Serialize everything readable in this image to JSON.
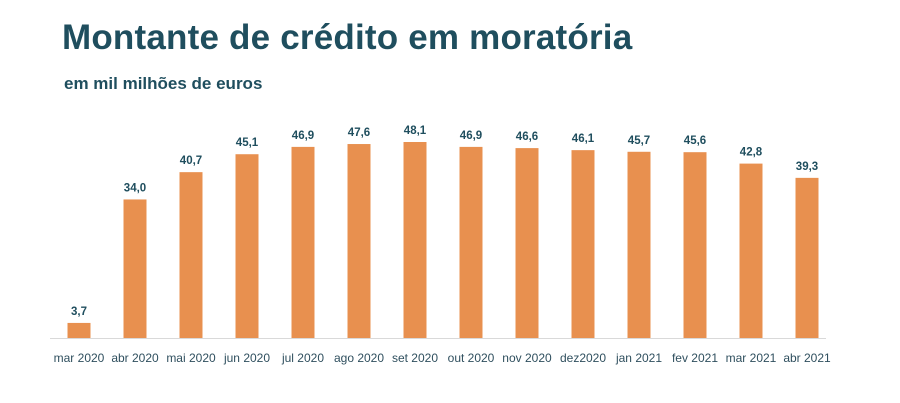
{
  "chart_data": {
    "type": "bar",
    "title": "Montante de crédito em moratória",
    "subtitle": "em mil milhões de euros",
    "categories": [
      "mar 2020",
      "abr 2020",
      "mai 2020",
      "jun 2020",
      "jul 2020",
      "ago 2020",
      "set 2020",
      "out 2020",
      "nov 2020",
      "dez2020",
      "jan 2021",
      "fev 2021",
      "mar 2021",
      "abr 2021"
    ],
    "values": [
      3.7,
      34.0,
      40.7,
      45.1,
      46.9,
      47.6,
      48.1,
      46.9,
      46.6,
      46.1,
      45.7,
      45.6,
      42.8,
      39.3
    ],
    "labels": [
      "3,7",
      "34,0",
      "40,7",
      "45,1",
      "46,9",
      "47,6",
      "48,1",
      "46,9",
      "46,6",
      "46,1",
      "45,7",
      "45,6",
      "42,8",
      "39,3"
    ],
    "ylim": [
      0,
      48.1
    ],
    "grid": false,
    "legend": "none",
    "colors": {
      "bar": "#e8904f",
      "text": "#1f4e5e",
      "axis_text": "#2f4f5e",
      "baseline": "#d9d9d9"
    }
  }
}
